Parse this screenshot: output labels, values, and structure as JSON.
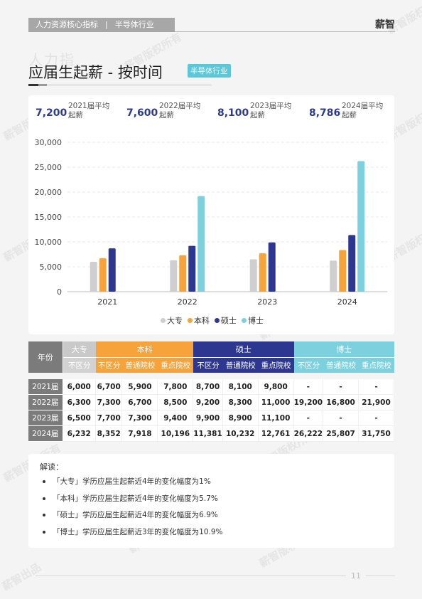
{
  "header": {
    "section": "人力资源核心指标",
    "industry": "半导体行业",
    "brand": "薪智"
  },
  "watermark": {
    "main": "薪智版权所有",
    "sub": "薪智出品",
    "big": "人力指"
  },
  "page_title": "应届生起薪 - 按时间",
  "title_tag": "半导体行业",
  "stats": [
    {
      "value": "7,200",
      "label": "2021届平均起薪"
    },
    {
      "value": "7,600",
      "label": "2022届平均起薪"
    },
    {
      "value": "8,100",
      "label": "2023届平均起薪"
    },
    {
      "value": "8,786",
      "label": "2024届平均起薪"
    }
  ],
  "chart_data": {
    "type": "bar",
    "categories": [
      "2021",
      "2022",
      "2023",
      "2024"
    ],
    "series": [
      {
        "name": "大专",
        "values": [
          6000,
          6300,
          6500,
          6232
        ],
        "color": "#cfcfcf"
      },
      {
        "name": "本科",
        "values": [
          6700,
          7300,
          7700,
          8352
        ],
        "color": "#f5a33a"
      },
      {
        "name": "硕士",
        "values": [
          8700,
          9200,
          9900,
          11381
        ],
        "color": "#2e3790"
      },
      {
        "name": "博士",
        "values": [
          null,
          19200,
          null,
          26222
        ],
        "color": "#7dd0de"
      }
    ],
    "ylim": [
      0,
      30000
    ],
    "yticks": [
      "0",
      "5,000",
      "10,000",
      "15,000",
      "20,000",
      "25,000",
      "30,000"
    ],
    "grid": true,
    "legend_position": "bottom"
  },
  "table": {
    "year_header": "年份",
    "groups": [
      {
        "label": "大专",
        "subs": [
          "不区分"
        ]
      },
      {
        "label": "本科",
        "subs": [
          "不区分",
          "普通院校",
          "重点院校"
        ]
      },
      {
        "label": "硕士",
        "subs": [
          "不区分",
          "普通院校",
          "重点院校"
        ]
      },
      {
        "label": "博士",
        "subs": [
          "不区分",
          "普通院校",
          "重点院校"
        ]
      }
    ],
    "rows": [
      {
        "year": "2021届",
        "values": [
          "6,000",
          "6,700",
          "5,900",
          "7,800",
          "8,700",
          "8,100",
          "9,800",
          "-",
          "-",
          "-"
        ]
      },
      {
        "year": "2022届",
        "values": [
          "6,300",
          "7,300",
          "6,700",
          "8,500",
          "9,200",
          "8,300",
          "11,000",
          "19,200",
          "16,800",
          "21,900"
        ]
      },
      {
        "year": "2023届",
        "values": [
          "6,500",
          "7,700",
          "7,300",
          "9,400",
          "9,900",
          "8,900",
          "11,100",
          "-",
          "-",
          "-"
        ]
      },
      {
        "year": "2024届",
        "values": [
          "6,232",
          "8,352",
          "7,918",
          "10,196",
          "11,381",
          "10,232",
          "12,761",
          "26,222",
          "25,807",
          "31,750"
        ]
      }
    ]
  },
  "notes": {
    "title": "解读：",
    "items": [
      "「大专」学历应届生起薪近4年的变化幅度为1%",
      "「本科」学历应届生起薪近4年的变化幅度为5.7%",
      "「硕士」学历应届生起薪近4年的变化幅度为6.9%",
      "「博士」学历应届生起薪近3年的变化幅度为10.9%"
    ]
  },
  "page_number": "11"
}
